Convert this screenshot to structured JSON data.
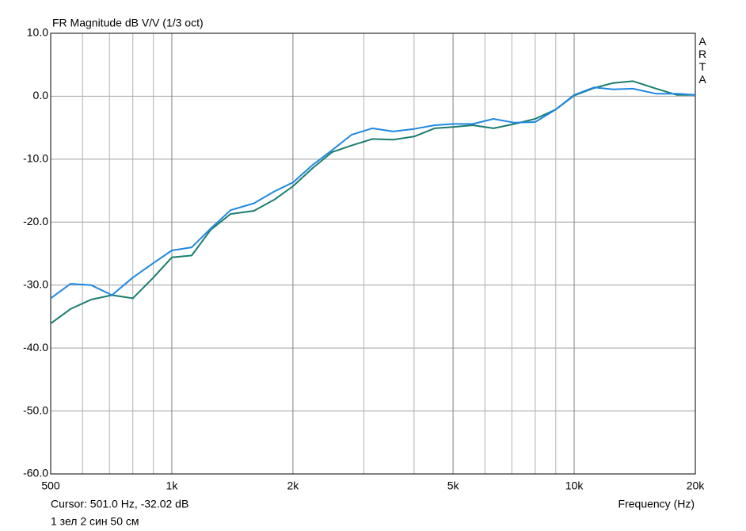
{
  "chart_data": {
    "type": "line",
    "title": "FR Magnitude dB V/V (1/3 oct)",
    "brand": "ARTA",
    "cursor": "Cursor: 501.0 Hz, -32.02 dB",
    "x_label": "Frequency (Hz)",
    "note": "1 зел 2 син 50 см",
    "x_scale": "log",
    "xlim": [
      500,
      20000
    ],
    "xticks": [
      {
        "value": 500,
        "label": "500"
      },
      {
        "value": 1000,
        "label": "1k"
      },
      {
        "value": 2000,
        "label": "2k"
      },
      {
        "value": 5000,
        "label": "5k"
      },
      {
        "value": 10000,
        "label": "10k"
      },
      {
        "value": 20000,
        "label": "20k"
      }
    ],
    "x_minor_gridlines": [
      600,
      700,
      800,
      900,
      3000,
      4000,
      6000,
      7000,
      8000,
      9000
    ],
    "ylim": [
      -60,
      10
    ],
    "yticks": [
      {
        "value": -60,
        "label": "-60.0"
      },
      {
        "value": -50,
        "label": "-50.0"
      },
      {
        "value": -40,
        "label": "-40.0"
      },
      {
        "value": -30,
        "label": "-30.0"
      },
      {
        "value": -20,
        "label": "-20.0"
      },
      {
        "value": -10,
        "label": "-10.0"
      },
      {
        "value": 0,
        "label": "0.0"
      },
      {
        "value": 10,
        "label": "10.0"
      }
    ],
    "grid": true,
    "x": [
      500,
      560,
      630,
      710,
      800,
      900,
      1000,
      1120,
      1250,
      1400,
      1600,
      1800,
      2000,
      2240,
      2500,
      2800,
      3150,
      3550,
      4000,
      4500,
      5000,
      5600,
      6300,
      7100,
      8000,
      9000,
      10000,
      11200,
      12500,
      14000,
      16000,
      18000,
      20000
    ],
    "series": [
      {
        "color": "#1a7d6e",
        "values": [
          -36.1,
          -33.8,
          -32.3,
          -31.6,
          -32.1,
          -28.8,
          -25.6,
          -25.3,
          -21.2,
          -18.7,
          -18.2,
          -16.4,
          -14.3,
          -11.4,
          -8.9,
          -7.8,
          -6.8,
          -6.9,
          -6.4,
          -5.1,
          -4.9,
          -4.6,
          -5.1,
          -4.4,
          -3.6,
          -2.1,
          0.1,
          1.3,
          2.1,
          2.4,
          1.2,
          0.2,
          0.2
        ]
      },
      {
        "color": "#1e88e0",
        "values": [
          -32.1,
          -29.8,
          -30.0,
          -31.6,
          -28.8,
          -26.5,
          -24.5,
          -24.0,
          -21.0,
          -18.1,
          -17.0,
          -15.1,
          -13.7,
          -10.9,
          -8.6,
          -6.1,
          -5.1,
          -5.6,
          -5.2,
          -4.6,
          -4.4,
          -4.4,
          -3.6,
          -4.2,
          -4.1,
          -2.1,
          0.2,
          1.4,
          1.1,
          1.2,
          0.4,
          0.4,
          0.2
        ]
      }
    ]
  }
}
